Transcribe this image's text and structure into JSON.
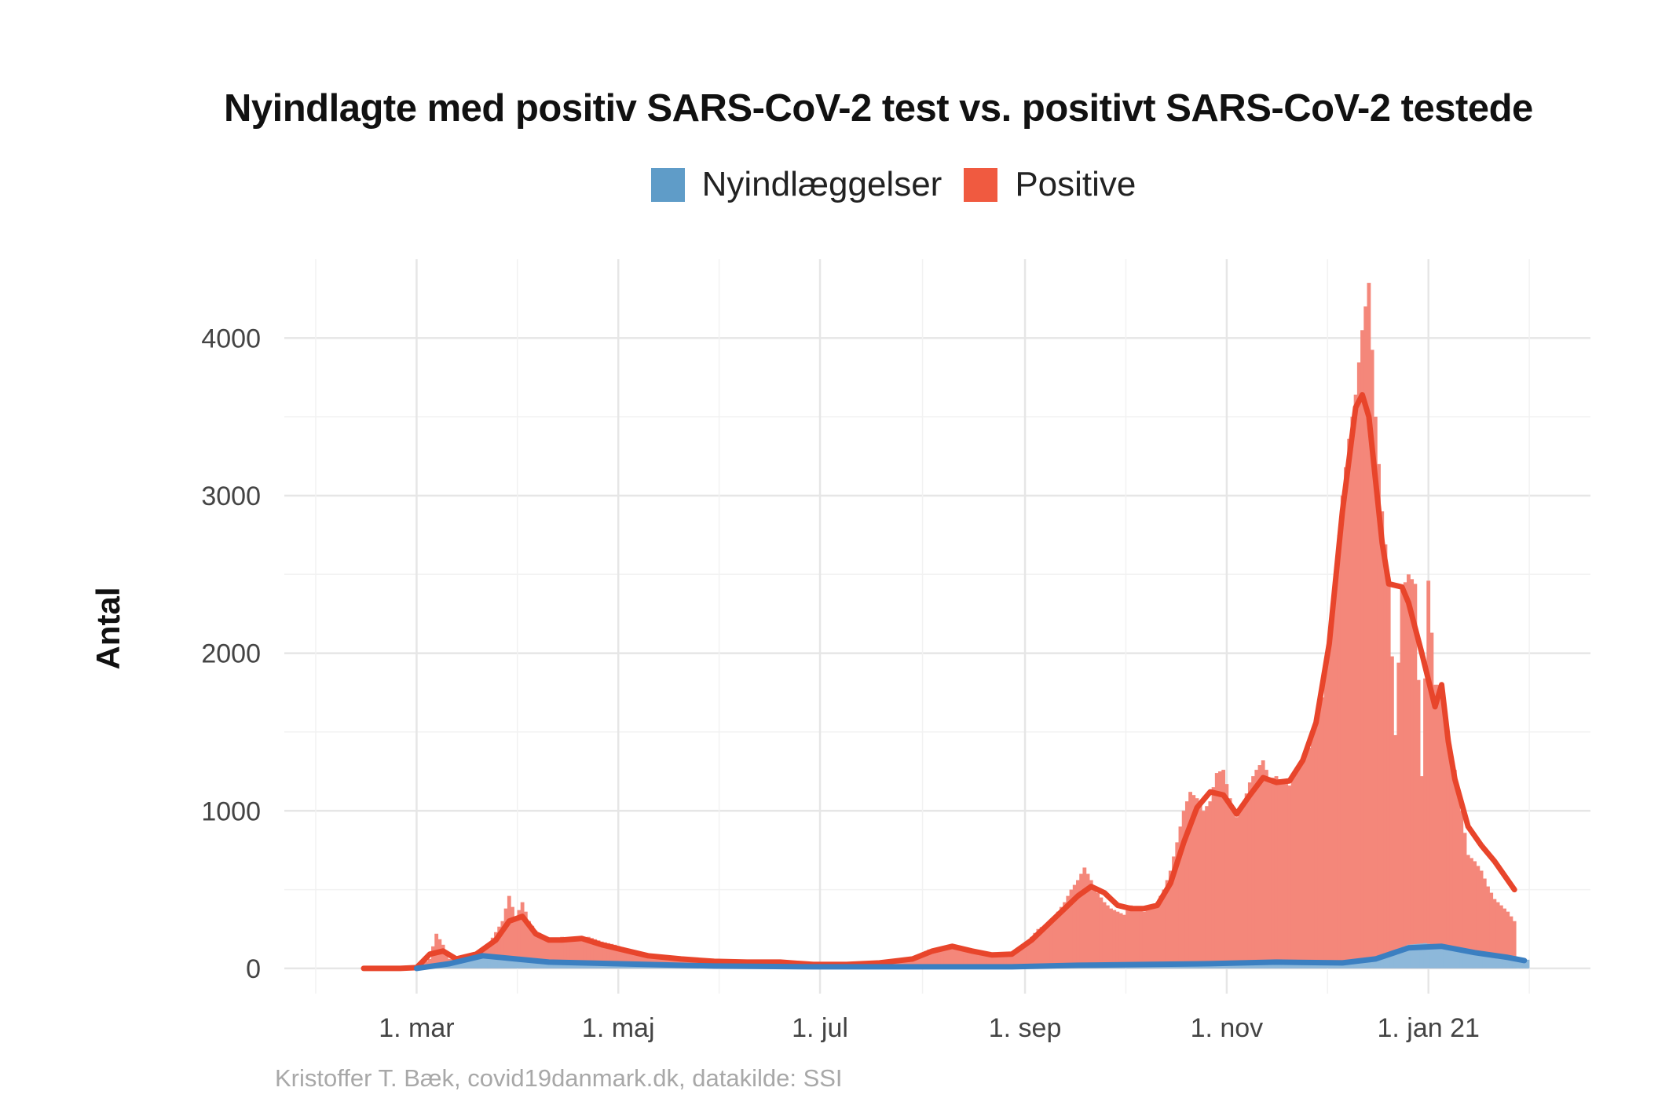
{
  "chart_data": {
    "type": "bar",
    "title": "Nyindlagte med positiv SARS-CoV-2 test vs. positivt SARS-CoV-2 testede",
    "ylabel": "Antal",
    "xlabel": "",
    "ylim": [
      -160,
      4500
    ],
    "y_ticks": [
      0,
      1000,
      2000,
      3000,
      4000
    ],
    "x_ticks": [
      {
        "label": "1. mar",
        "day": 60
      },
      {
        "label": "1. maj",
        "day": 121
      },
      {
        "label": "1. jul",
        "day": 182
      },
      {
        "label": "1. sep",
        "day": 244
      },
      {
        "label": "1. nov",
        "day": 305
      },
      {
        "label": "1. jan 21",
        "day": 366
      }
    ],
    "x_unit": "day of 2020 (1 = 1. jan 2020)",
    "grid": true,
    "legend_position": "top",
    "series": [
      {
        "name": "Nyindlæggelser",
        "color": "#5f9cc8",
        "fill_color": "#8db8da",
        "line_color": "#3b7fc1",
        "smoothed": [
          [
            60,
            0
          ],
          [
            70,
            30
          ],
          [
            80,
            80
          ],
          [
            90,
            60
          ],
          [
            100,
            40
          ],
          [
            110,
            35
          ],
          [
            120,
            30
          ],
          [
            130,
            25
          ],
          [
            150,
            15
          ],
          [
            180,
            10
          ],
          [
            210,
            10
          ],
          [
            240,
            10
          ],
          [
            260,
            20
          ],
          [
            280,
            25
          ],
          [
            300,
            30
          ],
          [
            320,
            40
          ],
          [
            340,
            35
          ],
          [
            350,
            60
          ],
          [
            360,
            130
          ],
          [
            370,
            140
          ],
          [
            380,
            100
          ],
          [
            390,
            70
          ],
          [
            395,
            50
          ]
        ],
        "bars": [
          [
            60,
            5
          ],
          [
            70,
            35
          ],
          [
            80,
            85
          ],
          [
            90,
            65
          ],
          [
            100,
            45
          ],
          [
            110,
            40
          ],
          [
            120,
            32
          ],
          [
            130,
            25
          ],
          [
            150,
            15
          ],
          [
            180,
            10
          ],
          [
            210,
            10
          ],
          [
            240,
            12
          ],
          [
            260,
            22
          ],
          [
            280,
            28
          ],
          [
            300,
            32
          ],
          [
            320,
            42
          ],
          [
            340,
            38
          ],
          [
            350,
            65
          ],
          [
            360,
            150
          ],
          [
            365,
            160
          ],
          [
            370,
            145
          ],
          [
            380,
            105
          ],
          [
            390,
            75
          ],
          [
            396,
            55
          ]
        ]
      },
      {
        "name": "Positive",
        "color": "#f05a40",
        "fill_color": "#f4877a",
        "line_color": "#e8452b",
        "bars": [
          [
            44,
            0
          ],
          [
            50,
            0
          ],
          [
            56,
            0
          ],
          [
            60,
            5
          ],
          [
            64,
            60
          ],
          [
            66,
            220
          ],
          [
            68,
            150
          ],
          [
            70,
            60
          ],
          [
            74,
            80
          ],
          [
            78,
            100
          ],
          [
            82,
            160
          ],
          [
            86,
            300
          ],
          [
            88,
            460
          ],
          [
            90,
            320
          ],
          [
            92,
            420
          ],
          [
            94,
            300
          ],
          [
            96,
            240
          ],
          [
            100,
            180
          ],
          [
            104,
            200
          ],
          [
            108,
            190
          ],
          [
            112,
            200
          ],
          [
            116,
            170
          ],
          [
            120,
            150
          ],
          [
            124,
            120
          ],
          [
            128,
            100
          ],
          [
            132,
            80
          ],
          [
            136,
            70
          ],
          [
            140,
            60
          ],
          [
            145,
            55
          ],
          [
            150,
            50
          ],
          [
            155,
            45
          ],
          [
            160,
            40
          ],
          [
            165,
            45
          ],
          [
            170,
            40
          ],
          [
            175,
            30
          ],
          [
            180,
            25
          ],
          [
            185,
            20
          ],
          [
            190,
            25
          ],
          [
            195,
            30
          ],
          [
            200,
            35
          ],
          [
            205,
            40
          ],
          [
            210,
            70
          ],
          [
            215,
            120
          ],
          [
            220,
            140
          ],
          [
            225,
            120
          ],
          [
            230,
            90
          ],
          [
            235,
            80
          ],
          [
            240,
            100
          ],
          [
            244,
            150
          ],
          [
            248,
            250
          ],
          [
            252,
            300
          ],
          [
            256,
            420
          ],
          [
            258,
            500
          ],
          [
            260,
            560
          ],
          [
            262,
            640
          ],
          [
            264,
            560
          ],
          [
            266,
            480
          ],
          [
            268,
            420
          ],
          [
            270,
            380
          ],
          [
            272,
            360
          ],
          [
            274,
            340
          ],
          [
            276,
            400
          ],
          [
            278,
            380
          ],
          [
            280,
            360
          ],
          [
            282,
            400
          ],
          [
            284,
            420
          ],
          [
            286,
            500
          ],
          [
            288,
            620
          ],
          [
            290,
            800
          ],
          [
            292,
            1000
          ],
          [
            294,
            1120
          ],
          [
            296,
            1080
          ],
          [
            298,
            1000
          ],
          [
            300,
            1060
          ],
          [
            302,
            1240
          ],
          [
            304,
            1260
          ],
          [
            306,
            1080
          ],
          [
            308,
            960
          ],
          [
            310,
            1040
          ],
          [
            312,
            1180
          ],
          [
            314,
            1260
          ],
          [
            316,
            1320
          ],
          [
            318,
            1200
          ],
          [
            320,
            1220
          ],
          [
            322,
            1180
          ],
          [
            324,
            1160
          ],
          [
            326,
            1260
          ],
          [
            328,
            1320
          ],
          [
            330,
            1400
          ],
          [
            332,
            1560
          ],
          [
            334,
            1720
          ],
          [
            336,
            2100
          ],
          [
            338,
            2500
          ],
          [
            340,
            3000
          ],
          [
            342,
            3360
          ],
          [
            344,
            3640
          ],
          [
            346,
            4050
          ],
          [
            348,
            4350
          ],
          [
            350,
            3500
          ],
          [
            352,
            2900
          ],
          [
            354,
            2480
          ],
          [
            356,
            1480
          ],
          [
            358,
            2400
          ],
          [
            360,
            2500
          ],
          [
            362,
            2440
          ],
          [
            364,
            1220
          ],
          [
            366,
            2460
          ],
          [
            368,
            1800
          ],
          [
            370,
            1800
          ],
          [
            372,
            1400
          ],
          [
            374,
            1260
          ],
          [
            376,
            1000
          ],
          [
            378,
            720
          ],
          [
            380,
            680
          ],
          [
            382,
            620
          ],
          [
            384,
            520
          ],
          [
            386,
            440
          ],
          [
            388,
            400
          ],
          [
            390,
            360
          ],
          [
            392,
            300
          ]
        ],
        "smoothed": [
          [
            44,
            0
          ],
          [
            55,
            0
          ],
          [
            60,
            5
          ],
          [
            64,
            90
          ],
          [
            68,
            110
          ],
          [
            72,
            60
          ],
          [
            78,
            90
          ],
          [
            84,
            180
          ],
          [
            88,
            300
          ],
          [
            92,
            330
          ],
          [
            96,
            220
          ],
          [
            100,
            180
          ],
          [
            104,
            180
          ],
          [
            110,
            190
          ],
          [
            116,
            150
          ],
          [
            122,
            120
          ],
          [
            130,
            80
          ],
          [
            140,
            60
          ],
          [
            150,
            45
          ],
          [
            160,
            40
          ],
          [
            170,
            40
          ],
          [
            180,
            25
          ],
          [
            190,
            25
          ],
          [
            200,
            35
          ],
          [
            210,
            60
          ],
          [
            216,
            110
          ],
          [
            222,
            140
          ],
          [
            228,
            110
          ],
          [
            234,
            85
          ],
          [
            240,
            90
          ],
          [
            246,
            180
          ],
          [
            252,
            300
          ],
          [
            256,
            380
          ],
          [
            260,
            460
          ],
          [
            264,
            520
          ],
          [
            268,
            480
          ],
          [
            272,
            400
          ],
          [
            276,
            380
          ],
          [
            280,
            380
          ],
          [
            284,
            400
          ],
          [
            288,
            540
          ],
          [
            292,
            800
          ],
          [
            296,
            1020
          ],
          [
            300,
            1120
          ],
          [
            304,
            1100
          ],
          [
            308,
            980
          ],
          [
            312,
            1100
          ],
          [
            316,
            1210
          ],
          [
            320,
            1180
          ],
          [
            324,
            1190
          ],
          [
            328,
            1320
          ],
          [
            332,
            1560
          ],
          [
            336,
            2060
          ],
          [
            340,
            2900
          ],
          [
            344,
            3560
          ],
          [
            346,
            3640
          ],
          [
            348,
            3500
          ],
          [
            350,
            3100
          ],
          [
            352,
            2700
          ],
          [
            354,
            2440
          ],
          [
            356,
            2430
          ],
          [
            358,
            2420
          ],
          [
            360,
            2320
          ],
          [
            364,
            2000
          ],
          [
            368,
            1660
          ],
          [
            370,
            1800
          ],
          [
            372,
            1440
          ],
          [
            374,
            1200
          ],
          [
            378,
            900
          ],
          [
            382,
            780
          ],
          [
            386,
            680
          ],
          [
            390,
            560
          ],
          [
            392,
            500
          ]
        ]
      }
    ]
  },
  "caption": "Kristoffer T. Bæk, covid19danmark.dk, datakilde: SSI"
}
